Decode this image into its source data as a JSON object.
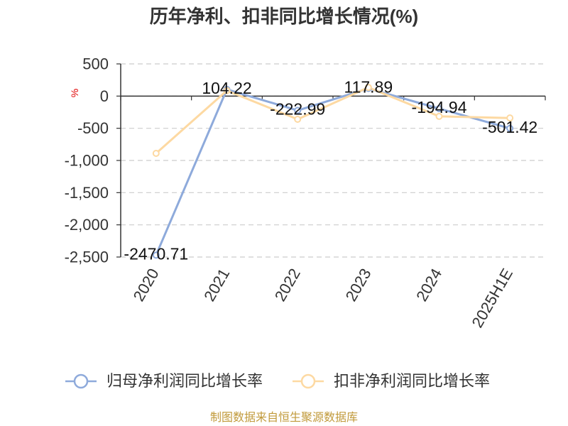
{
  "chart_data": {
    "type": "line",
    "title": "历年净利、扣非同比增长情况(%)",
    "ylabel": "%",
    "categories": [
      "2020",
      "2021",
      "2022",
      "2023",
      "2024",
      "2025H1E"
    ],
    "ylim": [
      -2500,
      500
    ],
    "ytick_labels": [
      "500",
      "0",
      "-500",
      "-1,000",
      "-1,500",
      "-2,000",
      "-2,500"
    ],
    "grid": true,
    "legend": "bottom",
    "series": [
      {
        "name": "归母净利润同比增长率",
        "values": [
          -2470.71,
          104.22,
          -222.99,
          117.89,
          -194.94,
          -501.42
        ],
        "color": "#8eaadb",
        "show_labels": true
      },
      {
        "name": "扣非净利润同比增长率",
        "values": [
          -890,
          85,
          -360,
          135,
          -315,
          -340
        ],
        "color": "#fdd9a2",
        "show_labels": false
      }
    ]
  },
  "footer": "制图数据来自恒生聚源数据库",
  "colors": {
    "text": "#333333",
    "axis": "#333333",
    "grid": "#cccccc",
    "unit": "#e00000",
    "data_label": "#111111",
    "footer": "#c19a3b"
  }
}
